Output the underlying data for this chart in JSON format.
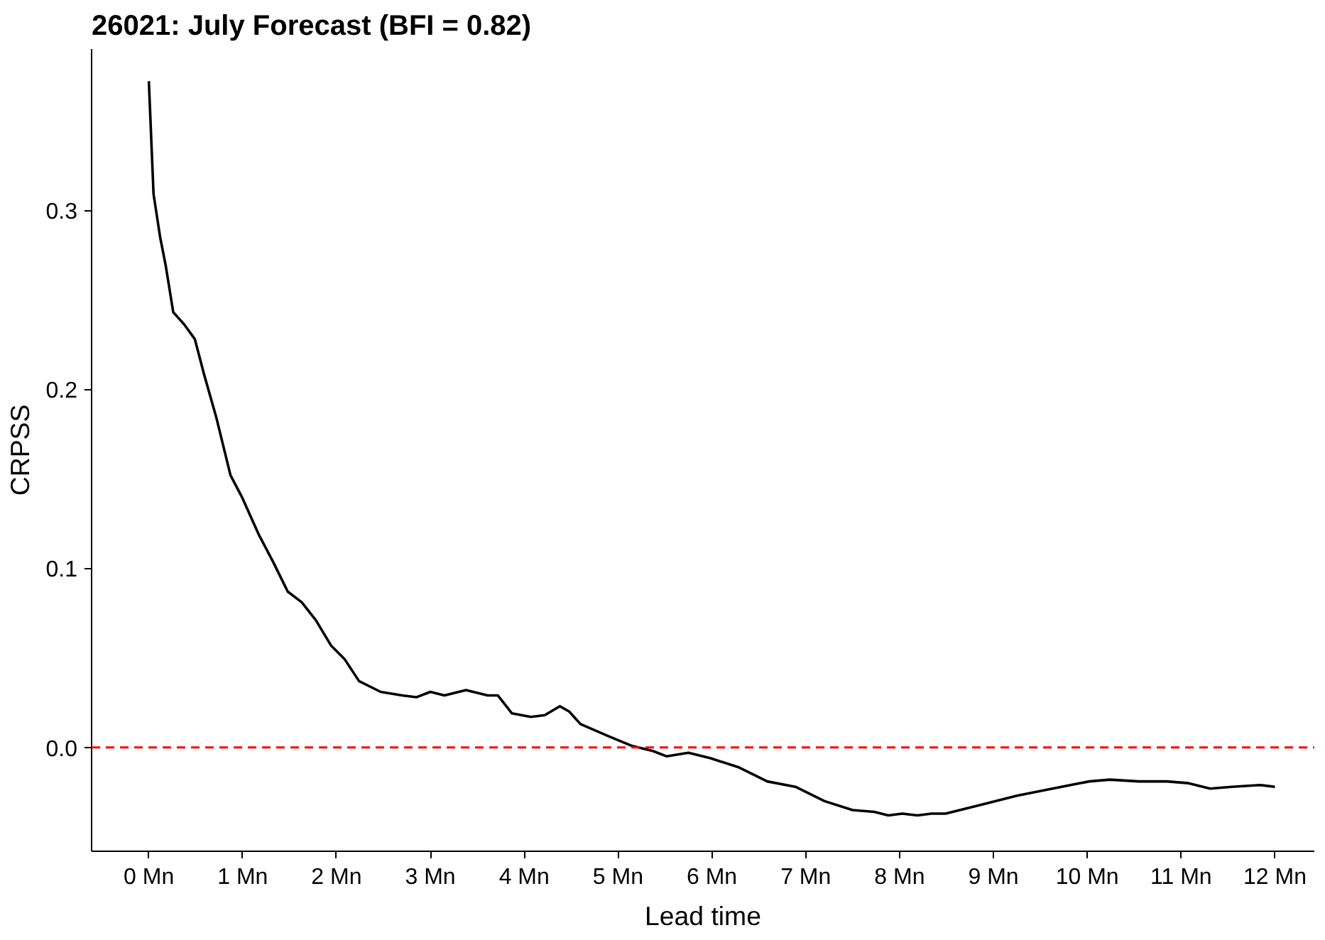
{
  "chart_data": {
    "type": "line",
    "title": "26021: July Forecast (BFI = 0.82)",
    "xlabel": "Lead time",
    "ylabel": "CRPSS",
    "x": [
      0,
      0.05,
      0.12,
      0.18,
      0.26,
      0.38,
      0.49,
      0.59,
      0.72,
      0.87,
      0.99,
      1.17,
      1.33,
      1.48,
      1.63,
      1.78,
      1.94,
      2.09,
      2.24,
      2.47,
      2.7,
      2.85,
      3.0,
      3.15,
      3.38,
      3.61,
      3.72,
      3.87,
      4.07,
      4.22,
      4.38,
      4.48,
      4.6,
      4.91,
      5.14,
      5.37,
      5.52,
      5.75,
      5.98,
      6.28,
      6.59,
      6.89,
      7.2,
      7.5,
      7.73,
      7.88,
      8.03,
      8.19,
      8.34,
      8.49,
      8.87,
      9.25,
      9.63,
      10.02,
      10.24,
      10.55,
      10.85,
      11.08,
      11.31,
      11.54,
      11.84,
      12.0
    ],
    "series": [
      {
        "color": "#000000",
        "values": [
          0.372,
          0.309,
          0.285,
          0.269,
          0.243,
          0.236,
          0.228,
          0.208,
          0.184,
          0.152,
          0.14,
          0.119,
          0.103,
          0.087,
          0.081,
          0.071,
          0.057,
          0.049,
          0.037,
          0.031,
          0.029,
          0.028,
          0.031,
          0.029,
          0.032,
          0.029,
          0.029,
          0.019,
          0.017,
          0.018,
          0.023,
          0.02,
          0.013,
          0.006,
          0.001,
          -0.002,
          -0.005,
          -0.003,
          -0.006,
          -0.011,
          -0.019,
          -0.022,
          -0.03,
          -0.035,
          -0.036,
          -0.038,
          -0.037,
          -0.038,
          -0.037,
          -0.037,
          -0.032,
          -0.027,
          -0.023,
          -0.019,
          -0.018,
          -0.019,
          -0.019,
          -0.02,
          -0.023,
          -0.022,
          -0.021,
          -0.022
        ]
      }
    ],
    "xlim": [
      -0.61,
      12.42
    ],
    "ylim": [
      -0.058,
      0.39
    ],
    "xticks": [
      {
        "value": 0,
        "label": "0 Mn"
      },
      {
        "value": 1,
        "label": "1 Mn"
      },
      {
        "value": 2,
        "label": "2 Mn"
      },
      {
        "value": 3,
        "label": "3 Mn"
      },
      {
        "value": 4,
        "label": "4 Mn"
      },
      {
        "value": 5,
        "label": "5 Mn"
      },
      {
        "value": 6,
        "label": "6 Mn"
      },
      {
        "value": 7,
        "label": "7 Mn"
      },
      {
        "value": 8,
        "label": "8 Mn"
      },
      {
        "value": 9,
        "label": "9 Mn"
      },
      {
        "value": 10,
        "label": "10 Mn"
      },
      {
        "value": 11,
        "label": "11 Mn"
      },
      {
        "value": 12,
        "label": "12 Mn"
      }
    ],
    "yticks": [
      {
        "value": 0,
        "label": "0.0"
      },
      {
        "value": 0.1,
        "label": "0.1"
      },
      {
        "value": 0.2,
        "label": "0.2"
      },
      {
        "value": 0.3,
        "label": "0.3"
      }
    ],
    "ref_lines": [
      {
        "axis": "y",
        "value": 0,
        "color": "#ff0000",
        "line_style": "dashed"
      }
    ],
    "grid": false
  }
}
